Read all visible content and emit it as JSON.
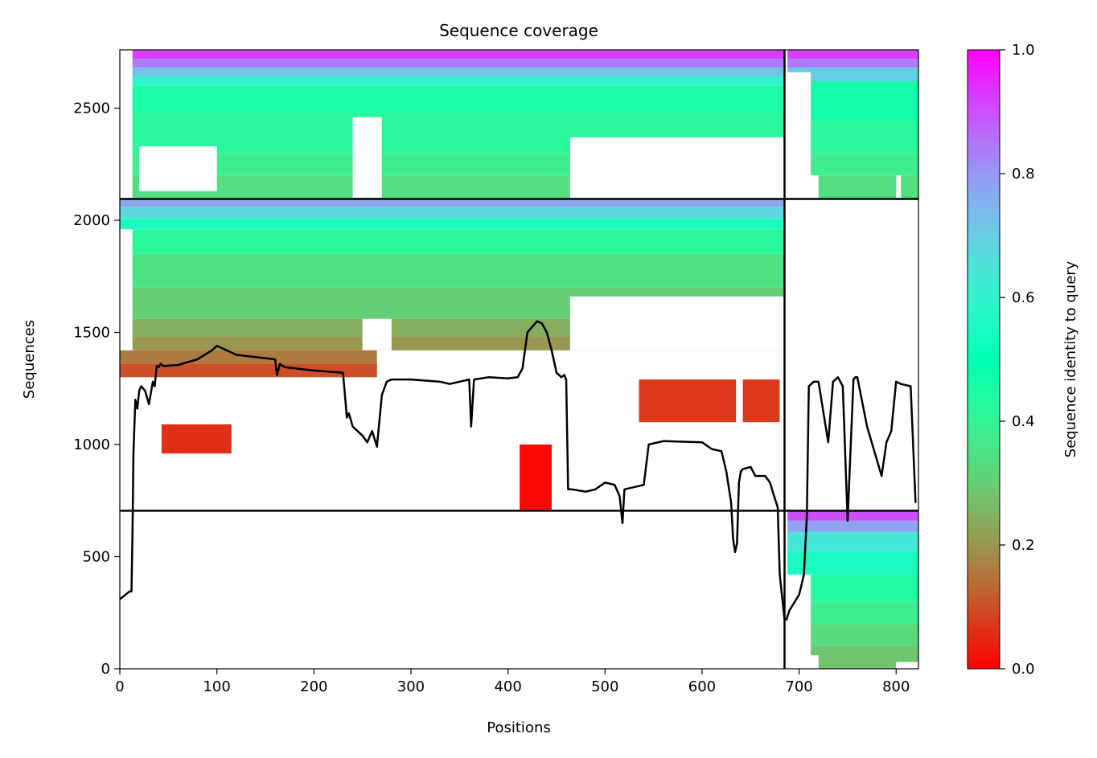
{
  "chart_data": {
    "type": "heatmap",
    "title": "Sequence coverage",
    "xlabel": "Positions",
    "ylabel": "Sequences",
    "xlim": [
      0,
      823
    ],
    "ylim": [
      0,
      2760
    ],
    "xticks": [
      0,
      100,
      200,
      300,
      400,
      500,
      600,
      700,
      800
    ],
    "yticks": [
      0,
      500,
      1000,
      1500,
      2000,
      2500
    ],
    "colorbar": {
      "label": "Sequence identity to query",
      "range": [
        0.0,
        1.0
      ],
      "ticks": [
        0.0,
        0.2,
        0.4,
        0.6,
        0.8,
        1.0
      ],
      "tick_labels": [
        "0.0",
        "0.2",
        "0.4",
        "0.6",
        "0.8",
        "1.0"
      ],
      "colormap": "rainbow_r"
    },
    "divider_positions": [
      685
    ],
    "divider_sequences": [
      705,
      2095
    ],
    "blocks": [
      {
        "x0": 13,
        "x1": 685,
        "y0": 2095,
        "y1": 2760,
        "bands": [
          [
            2720,
            2760,
            0.92
          ],
          [
            2680,
            2720,
            0.84
          ],
          [
            2640,
            2680,
            0.72
          ],
          [
            2600,
            2640,
            0.6
          ],
          [
            2480,
            2600,
            0.45
          ],
          [
            2300,
            2480,
            0.42
          ],
          [
            2200,
            2300,
            0.38
          ],
          [
            2095,
            2200,
            0.34
          ]
        ],
        "gaps": [
          [
            20,
            100,
            2130,
            2330
          ],
          [
            240,
            270,
            2100,
            2460
          ],
          [
            464,
            685,
            2095,
            2370
          ],
          [
            560,
            685,
            2095,
            2320
          ]
        ]
      },
      {
        "x0": 688,
        "x1": 823,
        "y0": 2095,
        "y1": 2760,
        "bands": [
          [
            2720,
            2760,
            0.92
          ],
          [
            2680,
            2720,
            0.84
          ],
          [
            2620,
            2680,
            0.7
          ],
          [
            2450,
            2620,
            0.46
          ],
          [
            2300,
            2450,
            0.42
          ],
          [
            2200,
            2300,
            0.38
          ],
          [
            2095,
            2200,
            0.34
          ]
        ],
        "gaps": [
          [
            688,
            712,
            2095,
            2660
          ],
          [
            712,
            720,
            2095,
            2200
          ],
          [
            800,
            805,
            2095,
            2200
          ]
        ]
      },
      {
        "x0": 0,
        "x1": 685,
        "y0": 1960,
        "y1": 2095,
        "bands": [
          [
            2060,
            2095,
            0.78
          ],
          [
            2010,
            2060,
            0.68
          ],
          [
            1960,
            2010,
            0.56
          ]
        ],
        "gaps": []
      },
      {
        "x0": 13,
        "x1": 685,
        "y0": 1420,
        "y1": 1960,
        "bands": [
          [
            1850,
            1960,
            0.42
          ],
          [
            1700,
            1850,
            0.35
          ],
          [
            1560,
            1700,
            0.3
          ],
          [
            1480,
            1560,
            0.24
          ],
          [
            1420,
            1480,
            0.2
          ]
        ],
        "gaps": [
          [
            464,
            685,
            1420,
            1660
          ],
          [
            250,
            280,
            1420,
            1560
          ]
        ]
      },
      {
        "x0": 0,
        "x1": 265,
        "y0": 1300,
        "y1": 1420,
        "bands": [
          [
            1360,
            1420,
            0.16
          ],
          [
            1300,
            1360,
            0.1
          ]
        ],
        "gaps": []
      },
      {
        "x0": 535,
        "x1": 680,
        "y0": 1100,
        "y1": 1290,
        "bands": [
          [
            1100,
            1290,
            0.07
          ]
        ],
        "gaps": [
          [
            635,
            642,
            1100,
            1290
          ]
        ]
      },
      {
        "x0": 43,
        "x1": 115,
        "y0": 960,
        "y1": 1090,
        "bands": [
          [
            960,
            1090,
            0.06
          ]
        ],
        "gaps": []
      },
      {
        "x0": 412,
        "x1": 445,
        "y0": 710,
        "y1": 1000,
        "bands": [
          [
            710,
            1000,
            0.01
          ]
        ],
        "gaps": []
      },
      {
        "x0": 688,
        "x1": 823,
        "y0": 0,
        "y1": 705,
        "bands": [
          [
            660,
            705,
            0.9
          ],
          [
            610,
            660,
            0.78
          ],
          [
            520,
            610,
            0.64
          ],
          [
            420,
            520,
            0.55
          ],
          [
            300,
            420,
            0.44
          ],
          [
            200,
            300,
            0.38
          ],
          [
            100,
            200,
            0.33
          ],
          [
            0,
            100,
            0.28
          ]
        ],
        "gaps": [
          [
            688,
            712,
            0,
            420
          ],
          [
            712,
            720,
            0,
            60
          ],
          [
            800,
            823,
            0,
            30
          ]
        ]
      }
    ],
    "coverage_line": {
      "x": [
        0,
        10,
        12,
        13,
        14,
        16,
        18,
        20,
        22,
        24,
        26,
        30,
        34,
        36,
        38,
        40,
        42,
        45,
        60,
        80,
        95,
        100,
        110,
        120,
        140,
        160,
        162,
        165,
        170,
        190,
        200,
        230,
        234,
        236,
        240,
        245,
        250,
        255,
        260,
        265,
        270,
        275,
        280,
        300,
        330,
        340,
        360,
        362,
        365,
        380,
        400,
        410,
        415,
        420,
        430,
        435,
        440,
        445,
        450,
        455,
        458,
        460,
        462,
        464,
        466,
        480,
        490,
        500,
        510,
        515,
        518,
        520,
        540,
        545,
        555,
        560,
        600,
        610,
        620,
        625,
        630,
        632,
        634,
        636,
        638,
        640,
        642,
        650,
        655,
        660,
        665,
        670,
        675,
        678,
        680,
        683,
        685,
        687,
        690,
        700,
        705,
        708,
        710,
        715,
        720,
        730,
        735,
        740,
        745,
        750,
        756,
        758,
        760,
        770,
        785,
        790,
        795,
        800,
        805,
        815,
        820,
        823
      ],
      "y": [
        310,
        345,
        345,
        590,
        960,
        1200,
        1160,
        1240,
        1260,
        1250,
        1240,
        1180,
        1280,
        1260,
        1350,
        1345,
        1360,
        1350,
        1355,
        1380,
        1420,
        1440,
        1420,
        1400,
        1390,
        1380,
        1310,
        1360,
        1345,
        1335,
        1330,
        1320,
        1120,
        1140,
        1080,
        1060,
        1040,
        1010,
        1060,
        990,
        1220,
        1280,
        1290,
        1290,
        1280,
        1270,
        1290,
        1080,
        1290,
        1300,
        1295,
        1300,
        1340,
        1500,
        1550,
        1540,
        1500,
        1420,
        1320,
        1300,
        1310,
        1290,
        800,
        800,
        800,
        790,
        800,
        830,
        820,
        770,
        650,
        800,
        820,
        1000,
        1010,
        1015,
        1010,
        980,
        970,
        880,
        740,
        580,
        520,
        560,
        830,
        880,
        890,
        900,
        860,
        860,
        860,
        830,
        760,
        720,
        420,
        300,
        220,
        220,
        260,
        330,
        420,
        680,
        1260,
        1280,
        1280,
        1010,
        1280,
        1300,
        1260,
        660,
        1290,
        1300,
        1300,
        1080,
        860,
        1010,
        1060,
        1280,
        1270,
        1260,
        740
      ]
    }
  }
}
